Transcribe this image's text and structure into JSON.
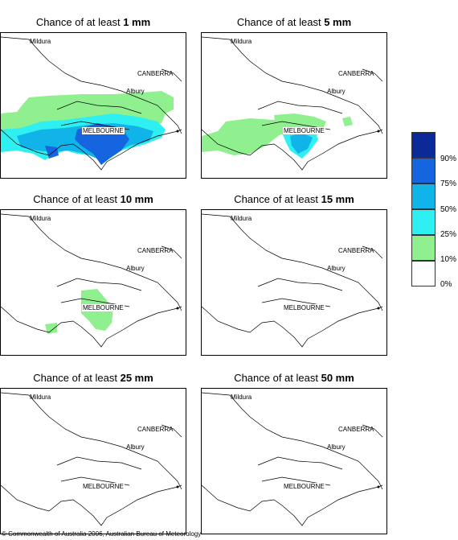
{
  "panels": [
    {
      "prefix": "Chance of at least ",
      "amount": "1 mm"
    },
    {
      "prefix": "Chance of at least ",
      "amount": "5 mm"
    },
    {
      "prefix": "Chance of at least ",
      "amount": "10 mm"
    },
    {
      "prefix": "Chance of at least ",
      "amount": "15 mm"
    },
    {
      "prefix": "Chance of at least ",
      "amount": "25 mm"
    },
    {
      "prefix": "Chance of at least ",
      "amount": "50 mm"
    }
  ],
  "places": {
    "mildura": "Mildura",
    "canberra": "CANBERRA",
    "albury": "Albury",
    "melbourne": "MELBOURNE"
  },
  "legend": {
    "labels": [
      "90%",
      "75%",
      "50%",
      "25%",
      "10%",
      "0%"
    ],
    "colors": [
      "#0a2a9a",
      "#1565e0",
      "#10b4e8",
      "#2ff0f0",
      "#90f090",
      "#ffffff"
    ]
  },
  "copyright": "© Commonwealth of Australia 2006, Australian Bureau of Meteorology"
}
